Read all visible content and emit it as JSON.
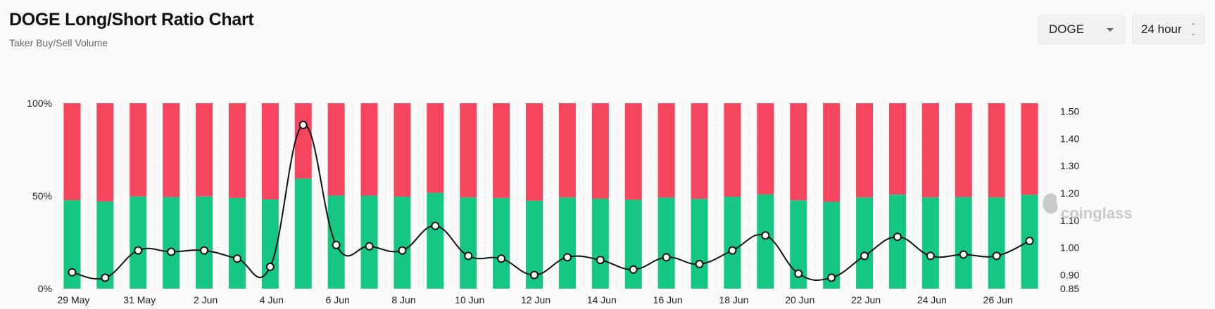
{
  "header": {
    "title": "DOGE Long/Short Ratio Chart",
    "subtitle": "Taker Buy/Sell Volume"
  },
  "controls": {
    "coin": "DOGE",
    "range": "24 hour"
  },
  "watermark": "coinglass",
  "colors": {
    "long": "#16c784",
    "short": "#f6465d",
    "line": "#111111"
  },
  "chart_data": {
    "type": "bar",
    "stacked_percent": true,
    "x": [
      "29 May",
      "30 May",
      "31 May",
      "1 Jun",
      "2 Jun",
      "3 Jun",
      "4 Jun",
      "5 Jun",
      "6 Jun",
      "7 Jun",
      "8 Jun",
      "9 Jun",
      "10 Jun",
      "11 Jun",
      "12 Jun",
      "13 Jun",
      "14 Jun",
      "15 Jun",
      "16 Jun",
      "17 Jun",
      "18 Jun",
      "19 Jun",
      "20 Jun",
      "21 Jun",
      "22 Jun",
      "23 Jun",
      "24 Jun",
      "25 Jun",
      "26 Jun",
      "27 Jun"
    ],
    "x_tick_labels": [
      "29 May",
      "31 May",
      "2 Jun",
      "4 Jun",
      "6 Jun",
      "8 Jun",
      "10 Jun",
      "12 Jun",
      "14 Jun",
      "16 Jun",
      "18 Jun",
      "20 Jun",
      "22 Jun",
      "24 Jun",
      "26 Jun"
    ],
    "series": [
      {
        "values": [
          47.7,
          47.0,
          49.7,
          49.4,
          49.7,
          48.9,
          48.1,
          59.3,
          50.2,
          50.2,
          49.6,
          51.7,
          49.2,
          48.9,
          47.4,
          49.2,
          48.5,
          47.9,
          49.1,
          48.4,
          49.6,
          50.8,
          47.6,
          46.8,
          49.2,
          50.7,
          49.2,
          49.4,
          49.2,
          50.6
        ]
      },
      {
        "values": [
          52.3,
          53.0,
          50.3,
          50.6,
          50.3,
          51.1,
          51.9,
          40.7,
          49.8,
          49.8,
          50.4,
          48.3,
          50.8,
          51.1,
          52.6,
          50.8,
          51.5,
          52.1,
          50.9,
          51.6,
          50.4,
          49.2,
          52.4,
          53.2,
          50.8,
          49.3,
          50.8,
          50.6,
          50.8,
          49.4
        ]
      },
      {
        "type": "line",
        "axis": "right",
        "values": [
          0.91,
          0.89,
          0.99,
          0.985,
          0.99,
          0.96,
          0.93,
          1.45,
          1.01,
          1.005,
          0.99,
          1.08,
          0.97,
          0.96,
          0.9,
          0.965,
          0.955,
          0.92,
          0.965,
          0.94,
          0.99,
          1.045,
          0.905,
          0.89,
          0.97,
          1.04,
          0.97,
          0.975,
          0.97,
          1.025
        ]
      }
    ],
    "left_axis": {
      "ticks": [
        "0%",
        "50%",
        "100%"
      ],
      "ylim": [
        0,
        100
      ]
    },
    "right_axis": {
      "ticks": [
        "0.85",
        "0.90",
        "1.00",
        "1.10",
        "1.20",
        "1.30",
        "1.40",
        "1.50"
      ],
      "ylim": [
        0.85,
        1.5
      ]
    },
    "grid": "vertical dashed"
  }
}
